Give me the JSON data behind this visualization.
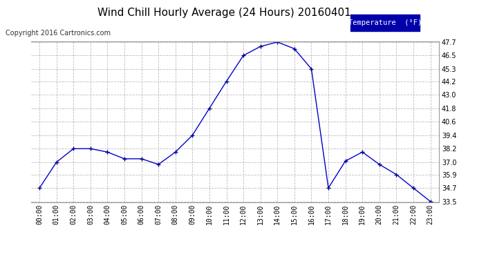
{
  "title": "Wind Chill Hourly Average (24 Hours) 20160401",
  "copyright": "Copyright 2016 Cartronics.com",
  "legend_label": "Temperature  (°F)",
  "x_labels": [
    "00:00",
    "01:00",
    "02:00",
    "03:00",
    "04:00",
    "05:00",
    "06:00",
    "07:00",
    "08:00",
    "09:00",
    "10:00",
    "11:00",
    "12:00",
    "13:00",
    "14:00",
    "15:00",
    "16:00",
    "17:00",
    "18:00",
    "19:00",
    "20:00",
    "21:00",
    "22:00",
    "23:00"
  ],
  "y_values": [
    34.7,
    37.0,
    38.2,
    38.2,
    37.9,
    37.3,
    37.3,
    36.8,
    37.9,
    39.4,
    41.8,
    44.2,
    46.5,
    47.3,
    47.7,
    47.1,
    45.3,
    34.7,
    37.1,
    37.9,
    36.8,
    35.9,
    34.7,
    33.5
  ],
  "ylim_min": 33.5,
  "ylim_max": 47.7,
  "yticks": [
    33.5,
    34.7,
    35.9,
    37.0,
    38.2,
    39.4,
    40.6,
    41.8,
    43.0,
    44.2,
    45.3,
    46.5,
    47.7
  ],
  "line_color": "#0000cc",
  "marker": "+",
  "marker_color": "#000088",
  "bg_color": "#ffffff",
  "plot_bg_color": "#ffffff",
  "grid_color": "#bbbbbb",
  "title_fontsize": 11,
  "copyright_fontsize": 7,
  "legend_bg_color": "#0000aa",
  "legend_text_color": "#ffffff",
  "tick_fontsize": 7
}
